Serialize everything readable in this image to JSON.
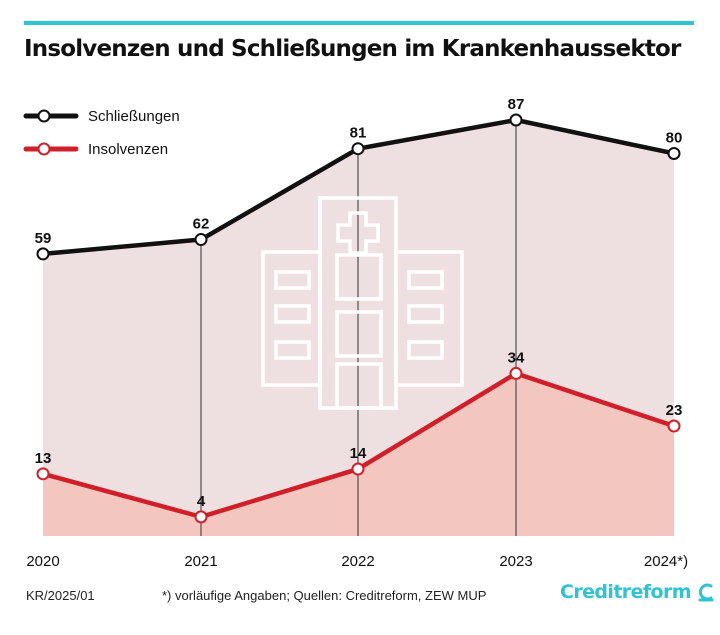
{
  "title": "Insolvenzen und Schließungen im Krankenhaussektor",
  "footer": {
    "code": "KR/2025/01",
    "note": "*) vorläufige Angaben; Quellen: Creditreform, ZEW MUP",
    "brand": "Creditreform"
  },
  "colors": {
    "accent": "#2fc3d6",
    "schliessungen": "#111111",
    "insolvenzen": "#d11f2a",
    "area_upper": "#eedfe0",
    "area_lower": "#f3c6bf"
  },
  "icon": "hospital-icon",
  "chart_data": {
    "type": "line",
    "categories": [
      "2020",
      "2021",
      "2022",
      "2023",
      "2024*)"
    ],
    "series": [
      {
        "name": "Schließungen",
        "values": [
          59,
          62,
          81,
          87,
          80
        ]
      },
      {
        "name": "Insolvenzen",
        "values": [
          13,
          4,
          14,
          34,
          23
        ]
      }
    ],
    "ylim": [
      0,
      90
    ],
    "title": "Insolvenzen und Schließungen im Krankenhaussektor",
    "xlabel": "",
    "ylabel": "",
    "legend": "top-left",
    "grid": false
  }
}
